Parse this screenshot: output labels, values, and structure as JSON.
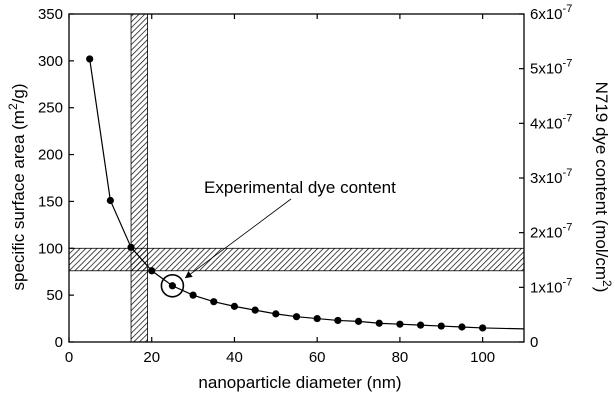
{
  "chart_data": {
    "type": "scatter",
    "x_label": "nanoparticle   diameter (nm)",
    "y_label_left": {
      "pre": "specific surface area (m",
      "sup": "2",
      "post": "/g)"
    },
    "y_label_right": {
      "pre": "N719 dye content (mol/cm",
      "sup": "2",
      "post": ")"
    },
    "xlim": [
      0,
      110
    ],
    "ylim_left": [
      0,
      350
    ],
    "ylim_right": [
      0,
      6e-07
    ],
    "x_ticks": [
      0,
      20,
      40,
      60,
      80,
      100
    ],
    "x_tick_labels": [
      "0",
      "20",
      "40",
      "60",
      "80",
      "100"
    ],
    "y_left_ticks": [
      0,
      50,
      100,
      150,
      200,
      250,
      300,
      350
    ],
    "y_left_tick_labels": [
      "0",
      "50",
      "100",
      "150",
      "200",
      "250",
      "300",
      "350"
    ],
    "y_right_ticks": [
      0,
      1e-07,
      2e-07,
      3e-07,
      4e-07,
      5e-07,
      6e-07
    ],
    "y_right_tick_labels": [
      {
        "base": "0",
        "exp": ""
      },
      {
        "base": "1x10",
        "exp": "-7"
      },
      {
        "base": "2x10",
        "exp": "-7"
      },
      {
        "base": "3x10",
        "exp": "-7"
      },
      {
        "base": "4x10",
        "exp": "-7"
      },
      {
        "base": "5x10",
        "exp": "-7"
      },
      {
        "base": "6x10",
        "exp": "-7"
      }
    ],
    "series": [
      {
        "x": [
          5,
          10,
          15,
          20,
          25,
          30,
          35,
          40,
          45,
          50,
          55,
          60,
          65,
          70,
          75,
          80,
          85,
          90,
          95,
          100
        ],
        "y": [
          302,
          151,
          101,
          76,
          60,
          50,
          43,
          38,
          34,
          30,
          27,
          25,
          23,
          22,
          20,
          19,
          18,
          17,
          16,
          15
        ],
        "curve_extends_to": [
          110,
          14
        ],
        "marker": "filled-circle",
        "color": "#000000"
      }
    ],
    "highlight_x_band": [
      15,
      19
    ],
    "highlight_y_band": [
      76,
      100
    ],
    "annotation": {
      "text": "Experimental dye content",
      "point": [
        25,
        60
      ],
      "marker": "open-circle"
    },
    "grid": false
  }
}
